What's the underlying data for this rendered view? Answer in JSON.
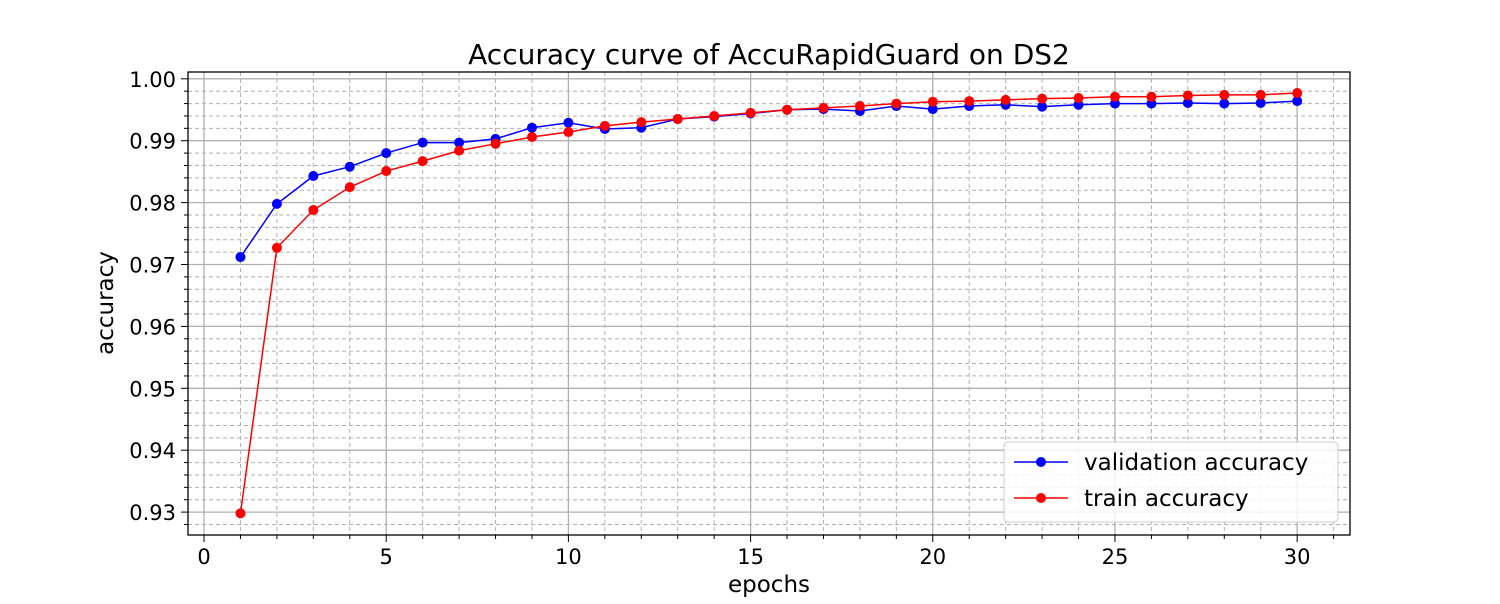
{
  "chart_data": {
    "type": "line",
    "title": "Accuracy curve of AccuRapidGuard on DS2",
    "xlabel": "epochs",
    "ylabel": "accuracy",
    "xlim": [
      -0.44,
      31.45
    ],
    "ylim": [
      0.9263,
      1.0011
    ],
    "xticks": [
      0,
      5,
      10,
      15,
      20,
      25,
      30
    ],
    "xtick_labels": [
      "0",
      "5",
      "10",
      "15",
      "20",
      "25",
      "30"
    ],
    "yticks": [
      0.93,
      0.94,
      0.95,
      0.96,
      0.97,
      0.98,
      0.99,
      1.0
    ],
    "ytick_labels": [
      "0.93",
      "0.94",
      "0.95",
      "0.96",
      "0.97",
      "0.98",
      "0.99",
      "1.00"
    ],
    "x_minor_step": 1,
    "y_minor_step": 0.002,
    "grid": true,
    "legend_position": "lower-right",
    "x": [
      1,
      2,
      3,
      4,
      5,
      6,
      7,
      8,
      9,
      10,
      11,
      12,
      13,
      14,
      15,
      16,
      17,
      18,
      19,
      20,
      21,
      22,
      23,
      24,
      25,
      26,
      27,
      28,
      29,
      30
    ],
    "series": [
      {
        "name": "validation accuracy",
        "color": "#0000ff",
        "marker": "circle",
        "values": [
          0.9712,
          0.9798,
          0.9843,
          0.9858,
          0.988,
          0.9897,
          0.9897,
          0.9903,
          0.9921,
          0.9929,
          0.9919,
          0.9921,
          0.9935,
          0.9939,
          0.9944,
          0.995,
          0.9951,
          0.9948,
          0.9956,
          0.9951,
          0.9956,
          0.9958,
          0.9955,
          0.9958,
          0.996,
          0.996,
          0.9961,
          0.996,
          0.9961,
          0.9964
        ]
      },
      {
        "name": "train accuracy",
        "color": "#ff0000",
        "marker": "circle",
        "values": [
          0.9298,
          0.9727,
          0.9788,
          0.9825,
          0.9851,
          0.9867,
          0.9884,
          0.9895,
          0.9906,
          0.9914,
          0.9924,
          0.993,
          0.9935,
          0.994,
          0.9945,
          0.995,
          0.9953,
          0.9956,
          0.996,
          0.9963,
          0.9964,
          0.9966,
          0.9968,
          0.9969,
          0.9971,
          0.9971,
          0.9973,
          0.9974,
          0.9974,
          0.9977
        ]
      }
    ]
  }
}
